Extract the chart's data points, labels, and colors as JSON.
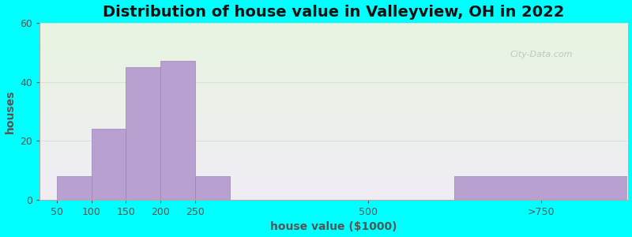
{
  "title": "Distribution of house value in Valleyview, OH in 2022",
  "xlabel": "house value ($1000)",
  "ylabel": "houses",
  "tick_positions": [
    50,
    100,
    150,
    200,
    250,
    500,
    750
  ],
  "tick_labels": [
    "50",
    "100",
    "150",
    "200",
    "250",
    "500",
    ">750"
  ],
  "bar_left_edges": [
    50,
    100,
    150,
    200,
    250,
    625
  ],
  "bar_widths_data": [
    50,
    50,
    50,
    50,
    50,
    250
  ],
  "bar_values": [
    8,
    24,
    45,
    47,
    8,
    8
  ],
  "bar_color": "#b8a0d0",
  "bar_edgecolor": "#9b82bc",
  "ylim": [
    0,
    60
  ],
  "xlim": [
    25,
    875
  ],
  "yticks": [
    0,
    20,
    40,
    60
  ],
  "background_outer": "#00ffff",
  "background_inner_top": "#e8f5e0",
  "background_inner_bottom": "#f0ecf5",
  "title_fontsize": 14,
  "axis_label_fontsize": 10,
  "tick_fontsize": 9,
  "watermark_text": "City-Data.com"
}
